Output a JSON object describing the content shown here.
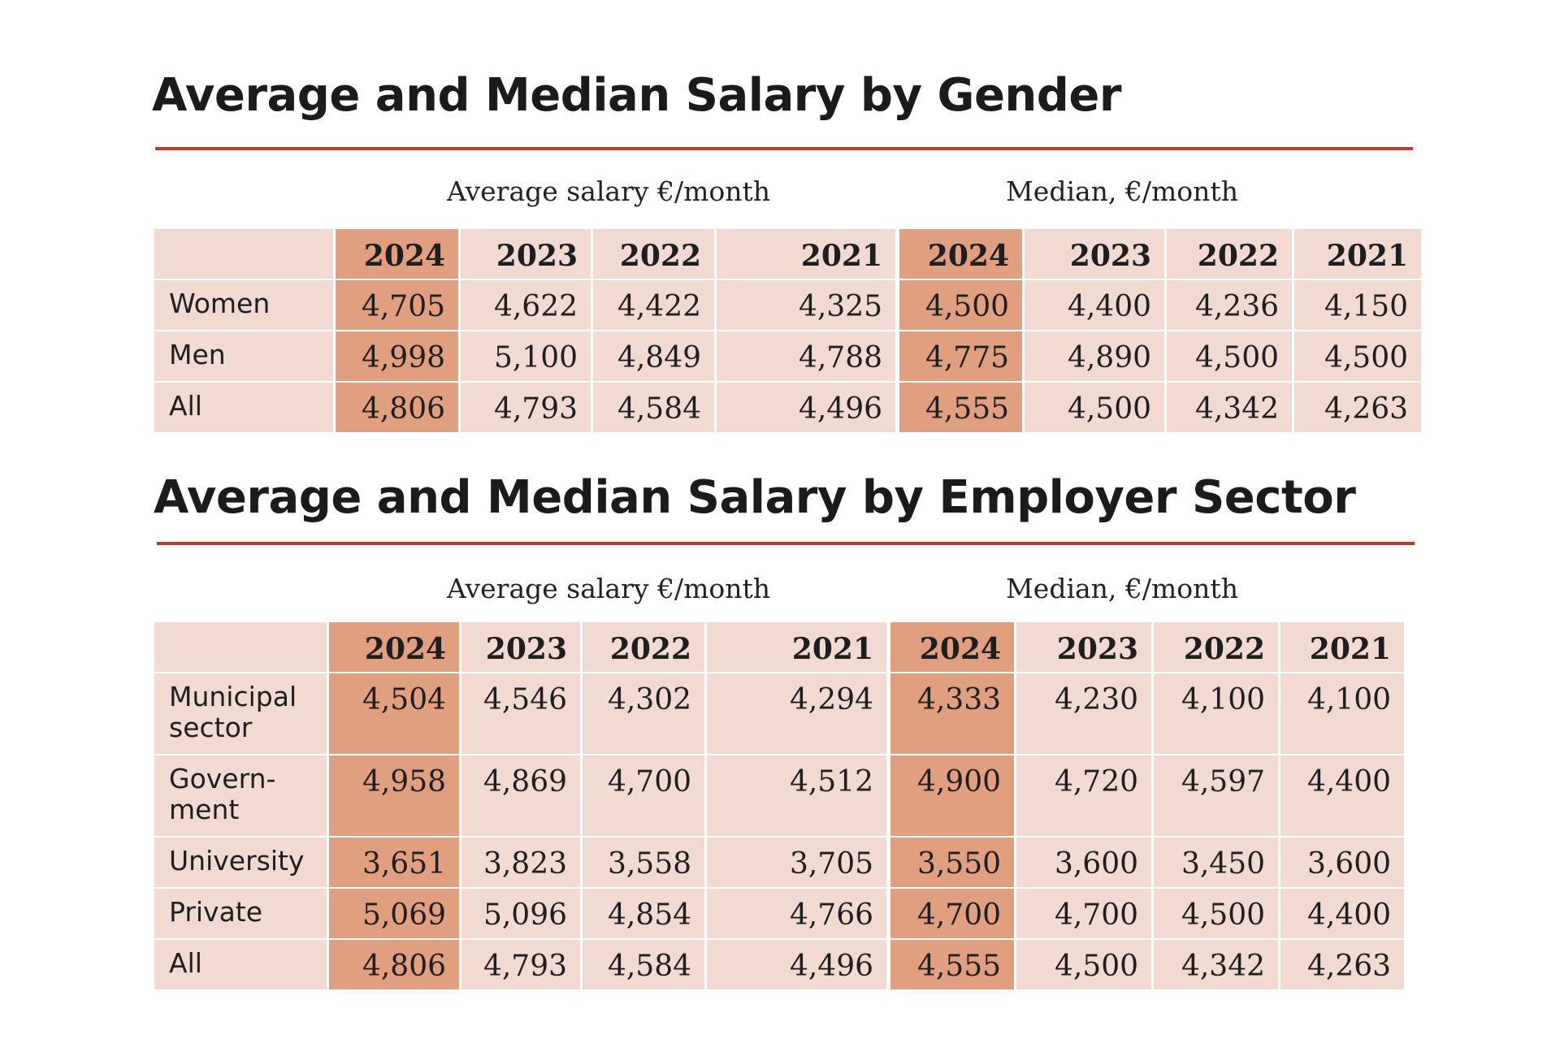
{
  "sections": [
    {
      "title": "Average and Median Salary by Gender",
      "group_average": "Average salary €/month",
      "group_median": "Median, €/month",
      "years": [
        "2024",
        "2023",
        "2022",
        "2021"
      ],
      "rows": [
        {
          "label": "Women",
          "average": [
            "4,705",
            "4,622",
            "4,422",
            "4,325"
          ],
          "median": [
            "4,500",
            "4,400",
            "4,236",
            "4,150"
          ]
        },
        {
          "label": "Men",
          "average": [
            "4,998",
            "5,100",
            "4,849",
            "4,788"
          ],
          "median": [
            "4,775",
            "4,890",
            "4,500",
            "4,500"
          ]
        },
        {
          "label": "All",
          "average": [
            "4,806",
            "4,793",
            "4,584",
            "4,496"
          ],
          "median": [
            "4,555",
            "4,500",
            "4,342",
            "4,263"
          ]
        }
      ]
    },
    {
      "title": "Average and Median Salary by Employer Sector",
      "group_average": "Average salary €/month",
      "group_median": "Median, €/month",
      "years": [
        "2024",
        "2023",
        "2022",
        "2021"
      ],
      "rows": [
        {
          "label": "Municipal\nsector",
          "average": [
            "4,504",
            "4,546",
            "4,302",
            "4,294"
          ],
          "median": [
            "4,333",
            "4,230",
            "4,100",
            "4,100"
          ]
        },
        {
          "label": "Govern-\nment",
          "average": [
            "4,958",
            "4,869",
            "4,700",
            "4,512"
          ],
          "median": [
            "4,900",
            "4,720",
            "4,597",
            "4,400"
          ]
        },
        {
          "label": "University",
          "average": [
            "3,651",
            "3,823",
            "3,558",
            "3,705"
          ],
          "median": [
            "3,550",
            "3,600",
            "3,450",
            "3,600"
          ]
        },
        {
          "label": "Private",
          "average": [
            "5,069",
            "5,096",
            "4,854",
            "4,766"
          ],
          "median": [
            "4,700",
            "4,700",
            "4,500",
            "4,400"
          ]
        },
        {
          "label": "All",
          "average": [
            "4,806",
            "4,793",
            "4,584",
            "4,496"
          ],
          "median": [
            "4,555",
            "4,500",
            "4,342",
            "4,263"
          ]
        }
      ]
    }
  ],
  "colors": {
    "rule": "#c0392b",
    "cell": "#f2dad3",
    "highlight": "#e0a080",
    "text": "#1e1e1e"
  }
}
